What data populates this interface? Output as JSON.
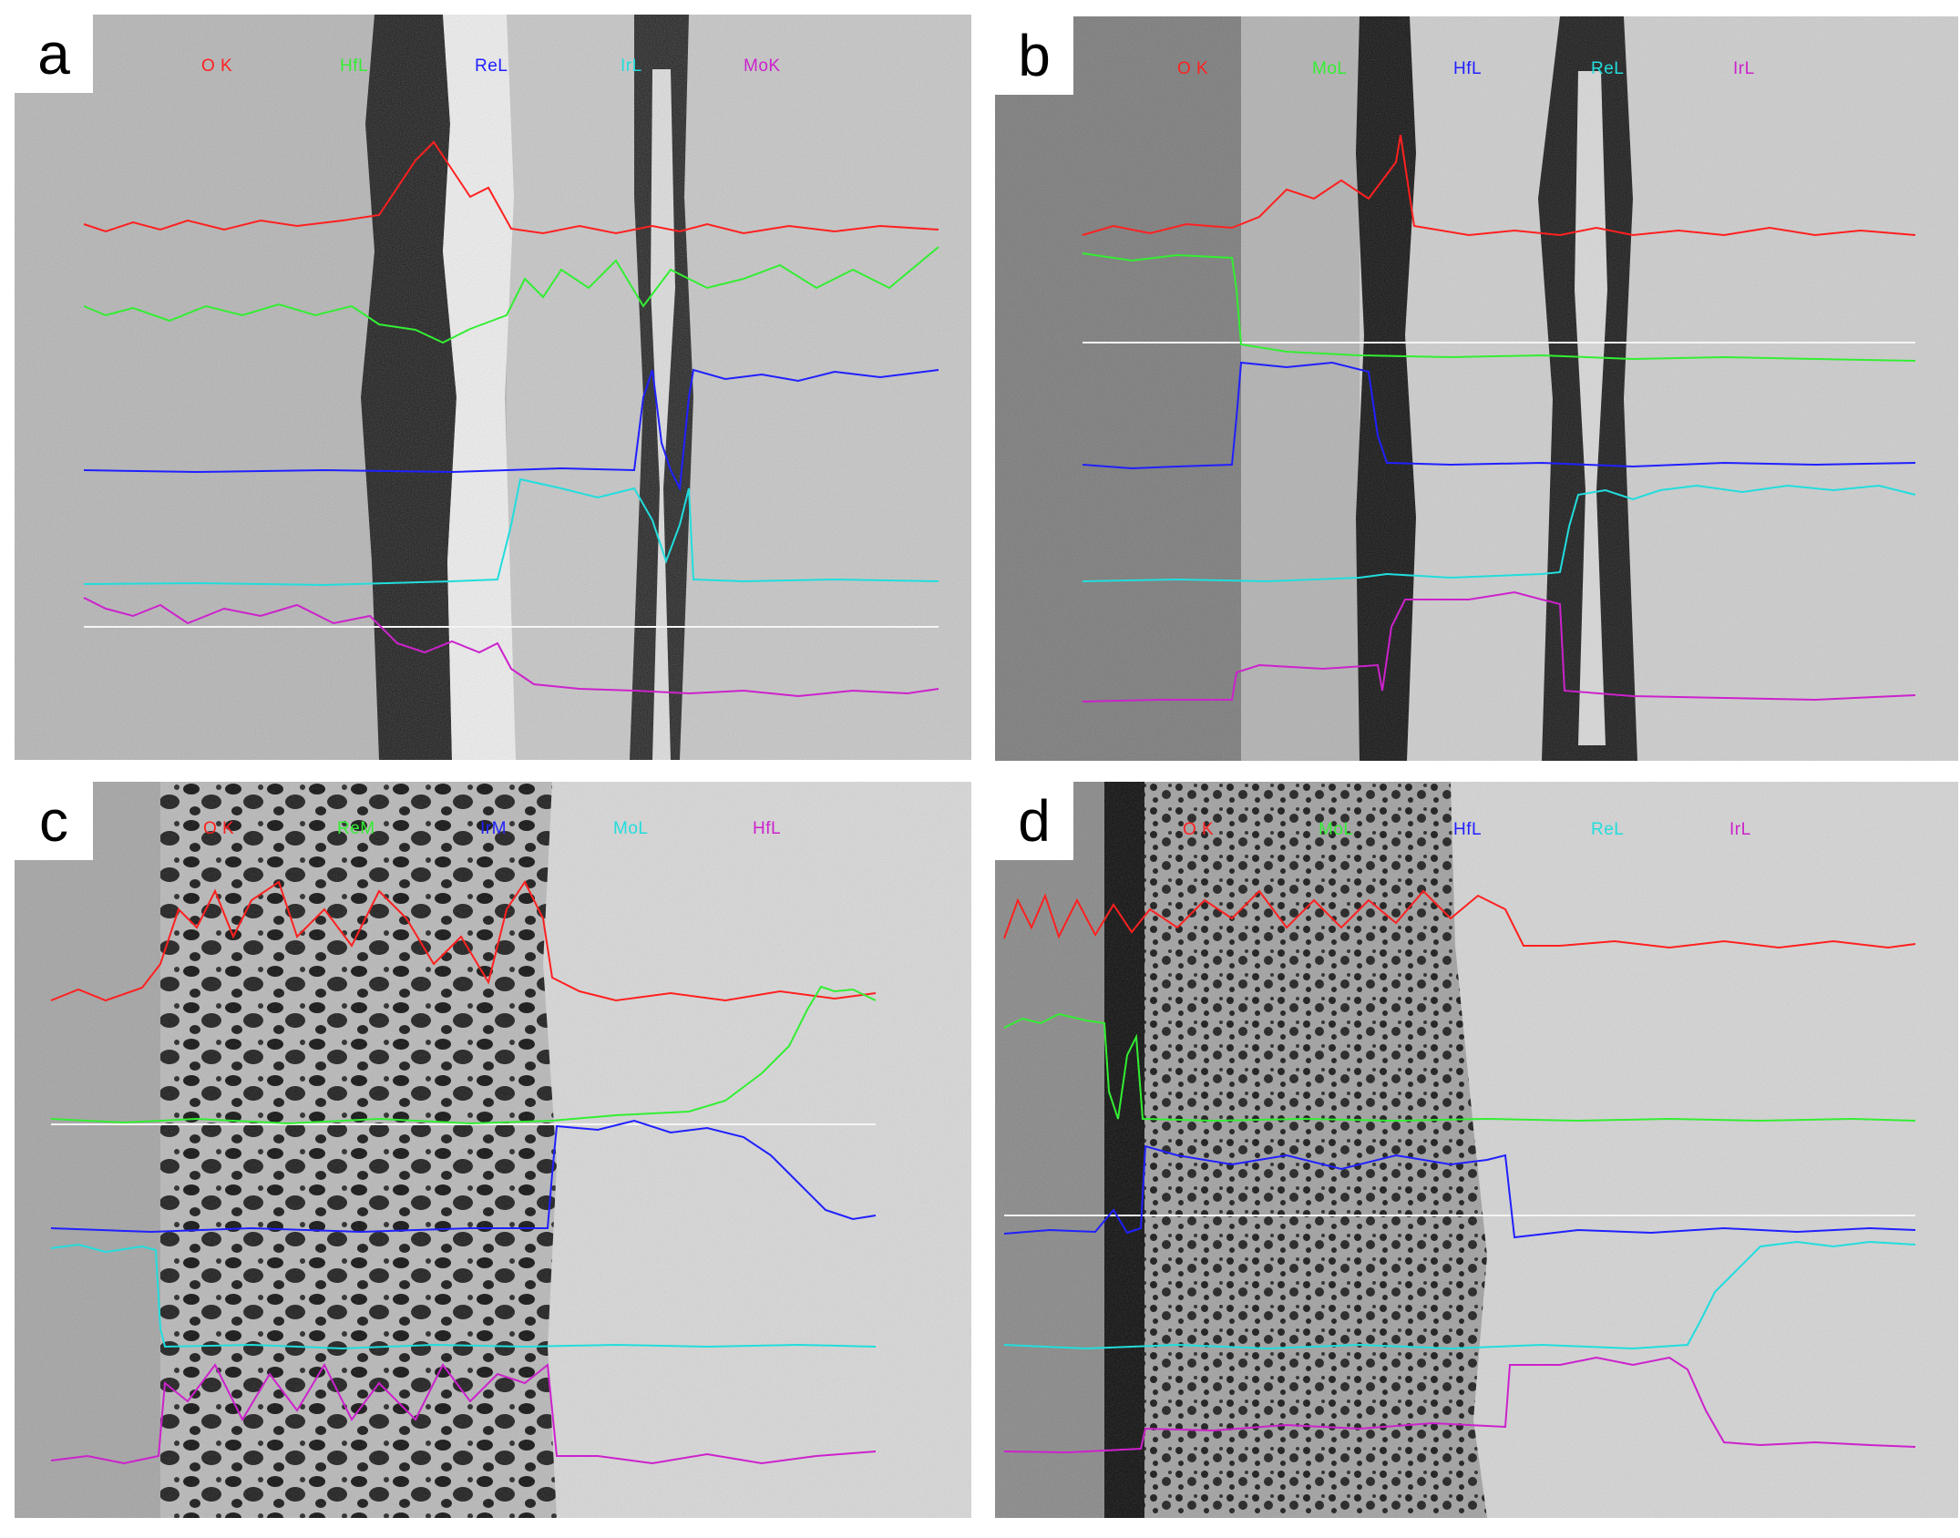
{
  "figure": {
    "panels": [
      {
        "letter": "a",
        "background": "#b9b9b9",
        "elements": [
          {
            "label": "O K",
            "color": "#ff2020"
          },
          {
            "label": "HfL",
            "color": "#33ee33"
          },
          {
            "label": "ReL",
            "color": "#2020ff"
          },
          {
            "label": "IrL",
            "color": "#22dddd"
          },
          {
            "label": "MoK",
            "color": "#cc22cc"
          }
        ]
      },
      {
        "letter": "b",
        "background": "#cfcfcf",
        "elements": [
          {
            "label": "O K",
            "color": "#ff2020"
          },
          {
            "label": "MoL",
            "color": "#33ee33"
          },
          {
            "label": "HfL",
            "color": "#2020ff"
          },
          {
            "label": "ReL",
            "color": "#22dddd"
          },
          {
            "label": "IrL",
            "color": "#cc22cc"
          }
        ]
      },
      {
        "letter": "c",
        "background": "#d8d8d8",
        "elements": [
          {
            "label": "O K",
            "color": "#ff2020"
          },
          {
            "label": "ReM",
            "color": "#33ee33"
          },
          {
            "label": "IrM",
            "color": "#2020ff"
          },
          {
            "label": "MoL",
            "color": "#22dddd"
          },
          {
            "label": "HfL",
            "color": "#cc22cc"
          }
        ]
      },
      {
        "letter": "d",
        "background": "#d4d4d4",
        "elements": [
          {
            "label": "O K",
            "color": "#ff2020"
          },
          {
            "label": "MoL",
            "color": "#33ee33"
          },
          {
            "label": "HfL",
            "color": "#2020ff"
          },
          {
            "label": "ReL",
            "color": "#22dddd"
          },
          {
            "label": "IrL",
            "color": "#cc22cc"
          }
        ]
      }
    ]
  }
}
